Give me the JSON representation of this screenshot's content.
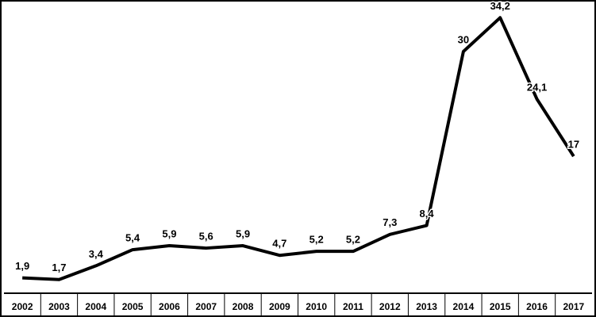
{
  "chart_data": {
    "type": "line",
    "categories": [
      "2002",
      "2003",
      "2004",
      "2005",
      "2006",
      "2007",
      "2008",
      "2009",
      "2010",
      "2011",
      "2012",
      "2013",
      "2014",
      "2015",
      "2016",
      "2017"
    ],
    "values": [
      1.9,
      1.7,
      3.4,
      5.4,
      5.9,
      5.6,
      5.9,
      4.7,
      5.2,
      5.2,
      7.3,
      8.4,
      30,
      34.2,
      24.1,
      17
    ],
    "value_labels": [
      "1,9",
      "1,7",
      "3,4",
      "5,4",
      "5,9",
      "5,6",
      "5,9",
      "4,7",
      "5,2",
      "5,2",
      "7,3",
      "8,4",
      "30",
      "34,2",
      "24,1",
      "17"
    ],
    "color": "#000000",
    "ylim": [
      0,
      36
    ]
  }
}
